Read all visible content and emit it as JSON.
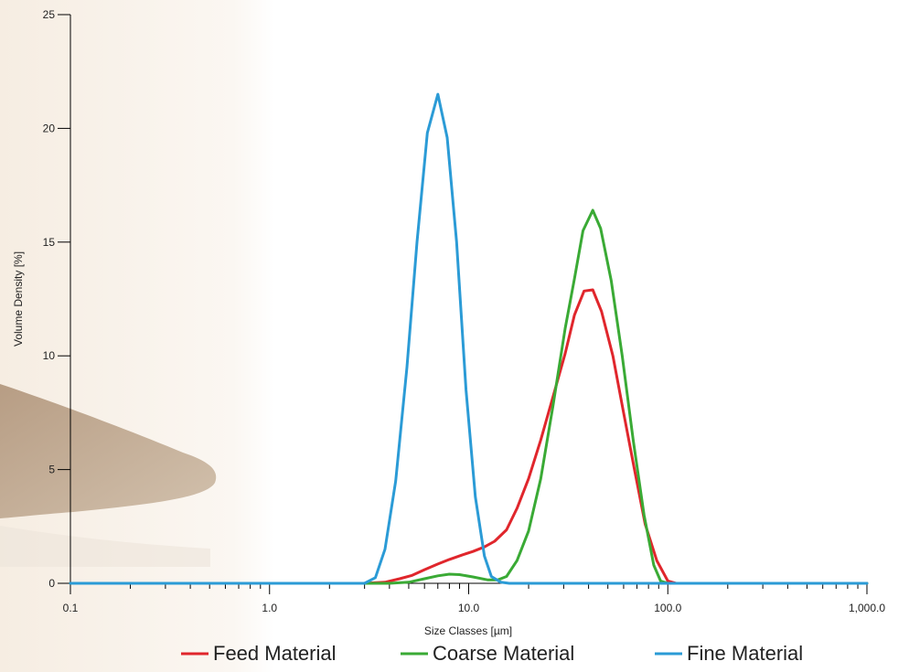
{
  "chart_data": {
    "type": "line",
    "xscale": "log",
    "xlabel": "Size Classes [µm]",
    "ylabel": "Volume Density [%]",
    "xlim": [
      0.1,
      1000
    ],
    "ylim": [
      0,
      25
    ],
    "x_ticks": [
      0.1,
      1.0,
      10.0,
      100.0,
      1000.0
    ],
    "x_tick_labels": [
      "0.1",
      "1.0",
      "10.0",
      "100.0",
      "1,000.0"
    ],
    "y_ticks": [
      0,
      5,
      10,
      15,
      20,
      25
    ],
    "y_tick_labels": [
      "0",
      "5",
      "10",
      "15",
      "20",
      "25"
    ],
    "grid": false,
    "legend_position": "bottom",
    "series": [
      {
        "name": "Feed Material",
        "color": "#e0262c",
        "points": [
          [
            0.1,
            0
          ],
          [
            3.0,
            0
          ],
          [
            3.8,
            0.05
          ],
          [
            4.5,
            0.2
          ],
          [
            5.2,
            0.35
          ],
          [
            6.0,
            0.6
          ],
          [
            7.0,
            0.85
          ],
          [
            8.0,
            1.05
          ],
          [
            9.3,
            1.25
          ],
          [
            10.5,
            1.4
          ],
          [
            12.0,
            1.6
          ],
          [
            13.5,
            1.85
          ],
          [
            15.5,
            2.35
          ],
          [
            17.5,
            3.3
          ],
          [
            20.0,
            4.6
          ],
          [
            23.0,
            6.3
          ],
          [
            26.5,
            8.2
          ],
          [
            30.5,
            10.1
          ],
          [
            34.0,
            11.8
          ],
          [
            38.0,
            12.85
          ],
          [
            42.0,
            12.9
          ],
          [
            46.5,
            11.95
          ],
          [
            53.0,
            10.0
          ],
          [
            60.0,
            7.5
          ],
          [
            68.0,
            5.0
          ],
          [
            77.0,
            2.6
          ],
          [
            88.0,
            1.0
          ],
          [
            100.0,
            0.1
          ],
          [
            110.0,
            0
          ],
          [
            1000.0,
            0
          ]
        ]
      },
      {
        "name": "Coarse Material",
        "color": "#3aaa35",
        "points": [
          [
            0.1,
            0
          ],
          [
            4.0,
            0
          ],
          [
            5.0,
            0.05
          ],
          [
            6.0,
            0.2
          ],
          [
            7.0,
            0.33
          ],
          [
            8.0,
            0.4
          ],
          [
            9.0,
            0.38
          ],
          [
            10.5,
            0.28
          ],
          [
            12.5,
            0.15
          ],
          [
            14.0,
            0.15
          ],
          [
            15.5,
            0.3
          ],
          [
            17.5,
            1.0
          ],
          [
            20.0,
            2.3
          ],
          [
            23.0,
            4.6
          ],
          [
            26.5,
            7.8
          ],
          [
            30.5,
            11.2
          ],
          [
            34.0,
            13.4
          ],
          [
            37.5,
            15.5
          ],
          [
            42.0,
            16.4
          ],
          [
            46.0,
            15.6
          ],
          [
            52.0,
            13.3
          ],
          [
            59.0,
            10.0
          ],
          [
            67.0,
            6.3
          ],
          [
            76.0,
            3.0
          ],
          [
            85.0,
            0.8
          ],
          [
            92.0,
            0.1
          ],
          [
            100.0,
            0
          ],
          [
            1000.0,
            0
          ]
        ]
      },
      {
        "name": "Fine Material",
        "color": "#2b9bd6",
        "points": [
          [
            0.1,
            0
          ],
          [
            3.0,
            0
          ],
          [
            3.4,
            0.25
          ],
          [
            3.8,
            1.5
          ],
          [
            4.3,
            4.5
          ],
          [
            4.9,
            9.5
          ],
          [
            5.5,
            15.0
          ],
          [
            6.2,
            19.8
          ],
          [
            7.0,
            21.5
          ],
          [
            7.8,
            19.6
          ],
          [
            8.7,
            15.0
          ],
          [
            9.7,
            8.5
          ],
          [
            10.8,
            3.8
          ],
          [
            12.0,
            1.2
          ],
          [
            13.0,
            0.3
          ],
          [
            14.5,
            0.05
          ],
          [
            16.0,
            0
          ],
          [
            1000.0,
            0
          ]
        ]
      }
    ]
  }
}
